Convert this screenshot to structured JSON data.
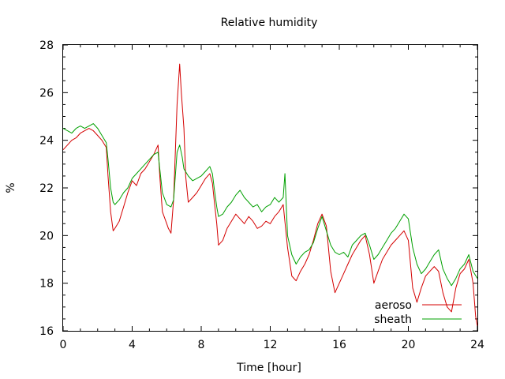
{
  "chart_data": {
    "type": "line",
    "title": "Relative humidity",
    "xlabel": "Time [hour]",
    "ylabel": "%",
    "xlim": [
      0,
      24
    ],
    "ylim": [
      16,
      28
    ],
    "xticks": [
      0,
      4,
      8,
      12,
      16,
      20,
      24
    ],
    "yticks": [
      16,
      18,
      20,
      22,
      24,
      26,
      28
    ],
    "grid": false,
    "legend_position": "bottom-right",
    "series": [
      {
        "name": "aeroso",
        "color": "#d40000",
        "points": [
          [
            0.0,
            23.6
          ],
          [
            0.25,
            23.8
          ],
          [
            0.5,
            24.0
          ],
          [
            0.75,
            24.1
          ],
          [
            1.0,
            24.3
          ],
          [
            1.25,
            24.4
          ],
          [
            1.5,
            24.5
          ],
          [
            1.75,
            24.4
          ],
          [
            2.0,
            24.2
          ],
          [
            2.25,
            24.0
          ],
          [
            2.5,
            23.7
          ],
          [
            2.6,
            22.5
          ],
          [
            2.75,
            21.0
          ],
          [
            2.9,
            20.2
          ],
          [
            3.0,
            20.3
          ],
          [
            3.25,
            20.6
          ],
          [
            3.5,
            21.2
          ],
          [
            3.75,
            21.8
          ],
          [
            4.0,
            22.3
          ],
          [
            4.25,
            22.1
          ],
          [
            4.5,
            22.6
          ],
          [
            4.75,
            22.8
          ],
          [
            5.0,
            23.1
          ],
          [
            5.25,
            23.4
          ],
          [
            5.5,
            23.8
          ],
          [
            5.6,
            22.5
          ],
          [
            5.75,
            21.0
          ],
          [
            6.0,
            20.5
          ],
          [
            6.1,
            20.3
          ],
          [
            6.25,
            20.1
          ],
          [
            6.4,
            21.5
          ],
          [
            6.5,
            23.5
          ],
          [
            6.6,
            25.5
          ],
          [
            6.75,
            27.2
          ],
          [
            6.85,
            26.0
          ],
          [
            7.0,
            24.5
          ],
          [
            7.1,
            22.5
          ],
          [
            7.25,
            21.4
          ],
          [
            7.5,
            21.6
          ],
          [
            7.75,
            21.8
          ],
          [
            8.0,
            22.1
          ],
          [
            8.25,
            22.4
          ],
          [
            8.5,
            22.6
          ],
          [
            8.65,
            22.2
          ],
          [
            8.75,
            21.5
          ],
          [
            8.9,
            20.5
          ],
          [
            9.0,
            19.6
          ],
          [
            9.25,
            19.8
          ],
          [
            9.5,
            20.3
          ],
          [
            9.75,
            20.6
          ],
          [
            10.0,
            20.9
          ],
          [
            10.25,
            20.7
          ],
          [
            10.5,
            20.5
          ],
          [
            10.75,
            20.8
          ],
          [
            11.0,
            20.6
          ],
          [
            11.25,
            20.3
          ],
          [
            11.5,
            20.4
          ],
          [
            11.75,
            20.6
          ],
          [
            12.0,
            20.5
          ],
          [
            12.25,
            20.8
          ],
          [
            12.5,
            21.0
          ],
          [
            12.75,
            21.3
          ],
          [
            13.0,
            19.5
          ],
          [
            13.25,
            18.3
          ],
          [
            13.5,
            18.1
          ],
          [
            13.75,
            18.5
          ],
          [
            14.0,
            18.8
          ],
          [
            14.25,
            19.2
          ],
          [
            14.5,
            19.8
          ],
          [
            14.75,
            20.5
          ],
          [
            15.0,
            20.9
          ],
          [
            15.25,
            20.4
          ],
          [
            15.5,
            18.5
          ],
          [
            15.75,
            17.6
          ],
          [
            16.0,
            18.0
          ],
          [
            16.25,
            18.4
          ],
          [
            16.5,
            18.8
          ],
          [
            16.75,
            19.2
          ],
          [
            17.0,
            19.5
          ],
          [
            17.25,
            19.8
          ],
          [
            17.5,
            20.0
          ],
          [
            17.75,
            19.2
          ],
          [
            18.0,
            18.0
          ],
          [
            18.25,
            18.5
          ],
          [
            18.5,
            19.0
          ],
          [
            18.75,
            19.3
          ],
          [
            19.0,
            19.6
          ],
          [
            19.25,
            19.8
          ],
          [
            19.5,
            20.0
          ],
          [
            19.75,
            20.2
          ],
          [
            20.0,
            19.8
          ],
          [
            20.25,
            17.8
          ],
          [
            20.5,
            17.2
          ],
          [
            20.75,
            17.8
          ],
          [
            21.0,
            18.3
          ],
          [
            21.25,
            18.5
          ],
          [
            21.5,
            18.7
          ],
          [
            21.75,
            18.5
          ],
          [
            22.0,
            17.6
          ],
          [
            22.25,
            17.0
          ],
          [
            22.5,
            16.8
          ],
          [
            22.75,
            17.8
          ],
          [
            23.0,
            18.4
          ],
          [
            23.25,
            18.6
          ],
          [
            23.5,
            19.0
          ],
          [
            23.75,
            18.0
          ],
          [
            23.9,
            16.6
          ],
          [
            24.0,
            16.2
          ]
        ]
      },
      {
        "name": "sheath",
        "color": "#00a000",
        "points": [
          [
            0.0,
            24.5
          ],
          [
            0.25,
            24.4
          ],
          [
            0.5,
            24.3
          ],
          [
            0.75,
            24.5
          ],
          [
            1.0,
            24.6
          ],
          [
            1.25,
            24.5
          ],
          [
            1.5,
            24.6
          ],
          [
            1.75,
            24.7
          ],
          [
            2.0,
            24.5
          ],
          [
            2.25,
            24.2
          ],
          [
            2.5,
            23.9
          ],
          [
            2.6,
            23.2
          ],
          [
            2.75,
            22.0
          ],
          [
            2.9,
            21.4
          ],
          [
            3.0,
            21.3
          ],
          [
            3.25,
            21.5
          ],
          [
            3.5,
            21.8
          ],
          [
            3.75,
            22.0
          ],
          [
            4.0,
            22.4
          ],
          [
            4.25,
            22.6
          ],
          [
            4.5,
            22.8
          ],
          [
            4.75,
            23.0
          ],
          [
            5.0,
            23.2
          ],
          [
            5.25,
            23.4
          ],
          [
            5.5,
            23.5
          ],
          [
            5.6,
            22.8
          ],
          [
            5.75,
            21.8
          ],
          [
            6.0,
            21.3
          ],
          [
            6.25,
            21.2
          ],
          [
            6.4,
            21.5
          ],
          [
            6.5,
            22.5
          ],
          [
            6.6,
            23.5
          ],
          [
            6.75,
            23.8
          ],
          [
            6.9,
            23.3
          ],
          [
            7.0,
            22.8
          ],
          [
            7.25,
            22.5
          ],
          [
            7.5,
            22.3
          ],
          [
            7.75,
            22.4
          ],
          [
            8.0,
            22.5
          ],
          [
            8.25,
            22.7
          ],
          [
            8.5,
            22.9
          ],
          [
            8.65,
            22.6
          ],
          [
            8.75,
            22.0
          ],
          [
            8.9,
            21.2
          ],
          [
            9.0,
            20.8
          ],
          [
            9.25,
            20.9
          ],
          [
            9.5,
            21.2
          ],
          [
            9.75,
            21.4
          ],
          [
            10.0,
            21.7
          ],
          [
            10.25,
            21.9
          ],
          [
            10.5,
            21.6
          ],
          [
            10.75,
            21.4
          ],
          [
            11.0,
            21.2
          ],
          [
            11.25,
            21.3
          ],
          [
            11.5,
            21.0
          ],
          [
            11.75,
            21.2
          ],
          [
            12.0,
            21.3
          ],
          [
            12.25,
            21.6
          ],
          [
            12.5,
            21.4
          ],
          [
            12.75,
            21.6
          ],
          [
            12.85,
            22.6
          ],
          [
            13.0,
            20.0
          ],
          [
            13.25,
            19.2
          ],
          [
            13.5,
            18.8
          ],
          [
            13.75,
            19.1
          ],
          [
            14.0,
            19.3
          ],
          [
            14.25,
            19.4
          ],
          [
            14.5,
            19.7
          ],
          [
            14.75,
            20.3
          ],
          [
            15.0,
            20.8
          ],
          [
            15.25,
            20.2
          ],
          [
            15.5,
            19.6
          ],
          [
            15.75,
            19.3
          ],
          [
            16.0,
            19.2
          ],
          [
            16.25,
            19.3
          ],
          [
            16.5,
            19.1
          ],
          [
            16.75,
            19.6
          ],
          [
            17.0,
            19.8
          ],
          [
            17.25,
            20.0
          ],
          [
            17.5,
            20.1
          ],
          [
            17.75,
            19.6
          ],
          [
            18.0,
            19.0
          ],
          [
            18.25,
            19.2
          ],
          [
            18.5,
            19.5
          ],
          [
            18.75,
            19.8
          ],
          [
            19.0,
            20.1
          ],
          [
            19.25,
            20.3
          ],
          [
            19.5,
            20.6
          ],
          [
            19.75,
            20.9
          ],
          [
            20.0,
            20.7
          ],
          [
            20.25,
            19.5
          ],
          [
            20.5,
            18.8
          ],
          [
            20.75,
            18.4
          ],
          [
            21.0,
            18.6
          ],
          [
            21.25,
            18.9
          ],
          [
            21.5,
            19.2
          ],
          [
            21.75,
            19.4
          ],
          [
            22.0,
            18.6
          ],
          [
            22.25,
            18.2
          ],
          [
            22.5,
            17.9
          ],
          [
            22.75,
            18.2
          ],
          [
            23.0,
            18.6
          ],
          [
            23.25,
            18.8
          ],
          [
            23.5,
            19.2
          ],
          [
            23.75,
            18.5
          ],
          [
            24.0,
            18.2
          ]
        ]
      }
    ]
  }
}
